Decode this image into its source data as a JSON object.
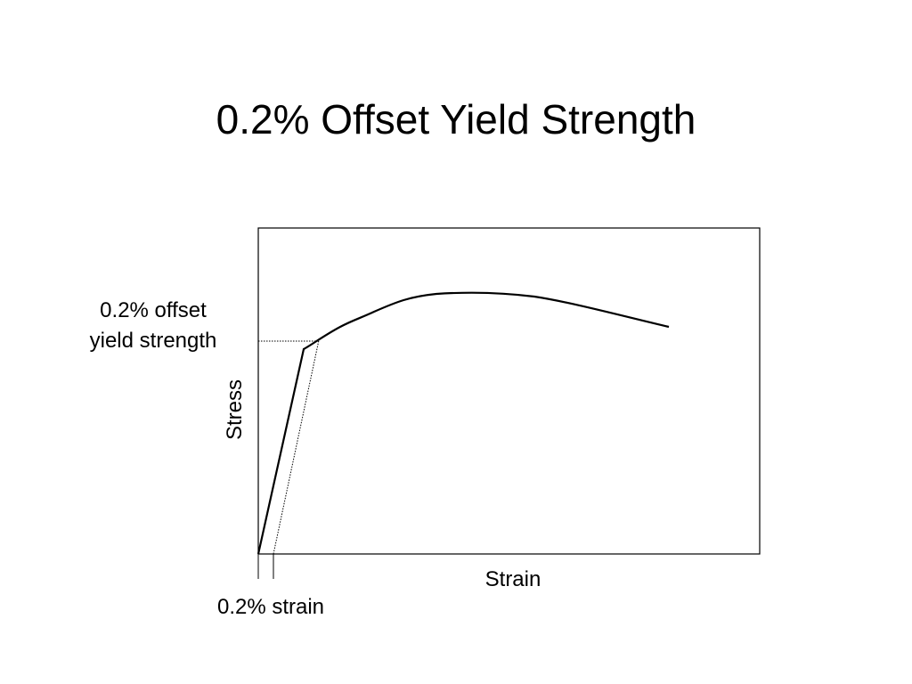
{
  "title": "0.2% Offset Yield Strength",
  "axes": {
    "y_label": "Stress",
    "x_label": "Strain"
  },
  "annotations": {
    "yield_label": [
      "0.2% offset",
      "yield strength"
    ],
    "strain_offset": "0.2% strain"
  }
}
